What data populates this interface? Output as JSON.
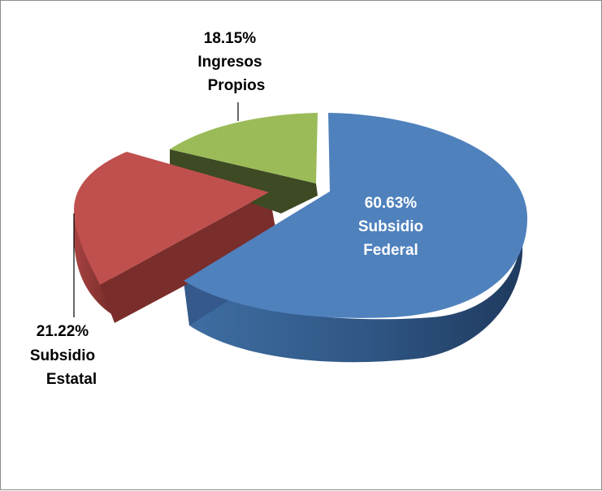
{
  "chart_data": {
    "type": "pie",
    "variant": "3d-exploded",
    "title": "",
    "legend": "none",
    "slices": [
      {
        "name": "Subsidio Federal",
        "value": 60.63,
        "value_label": "60.63%",
        "color": "#4f81bd"
      },
      {
        "name": "Subsidio Estatal",
        "value": 21.22,
        "value_label": "21.22%",
        "color": "#c0504d"
      },
      {
        "name": "Ingresos Propios",
        "value": 18.15,
        "value_label": "18.15%",
        "color": "#9bbb59"
      }
    ],
    "labels": {
      "federal": [
        "60.63%",
        "Subsidio",
        "Federal"
      ],
      "estatal": [
        "21.22%",
        "Subsidio",
        "Estatal"
      ],
      "propios": [
        "18.15%",
        "Ingresos",
        "Propios"
      ]
    }
  }
}
